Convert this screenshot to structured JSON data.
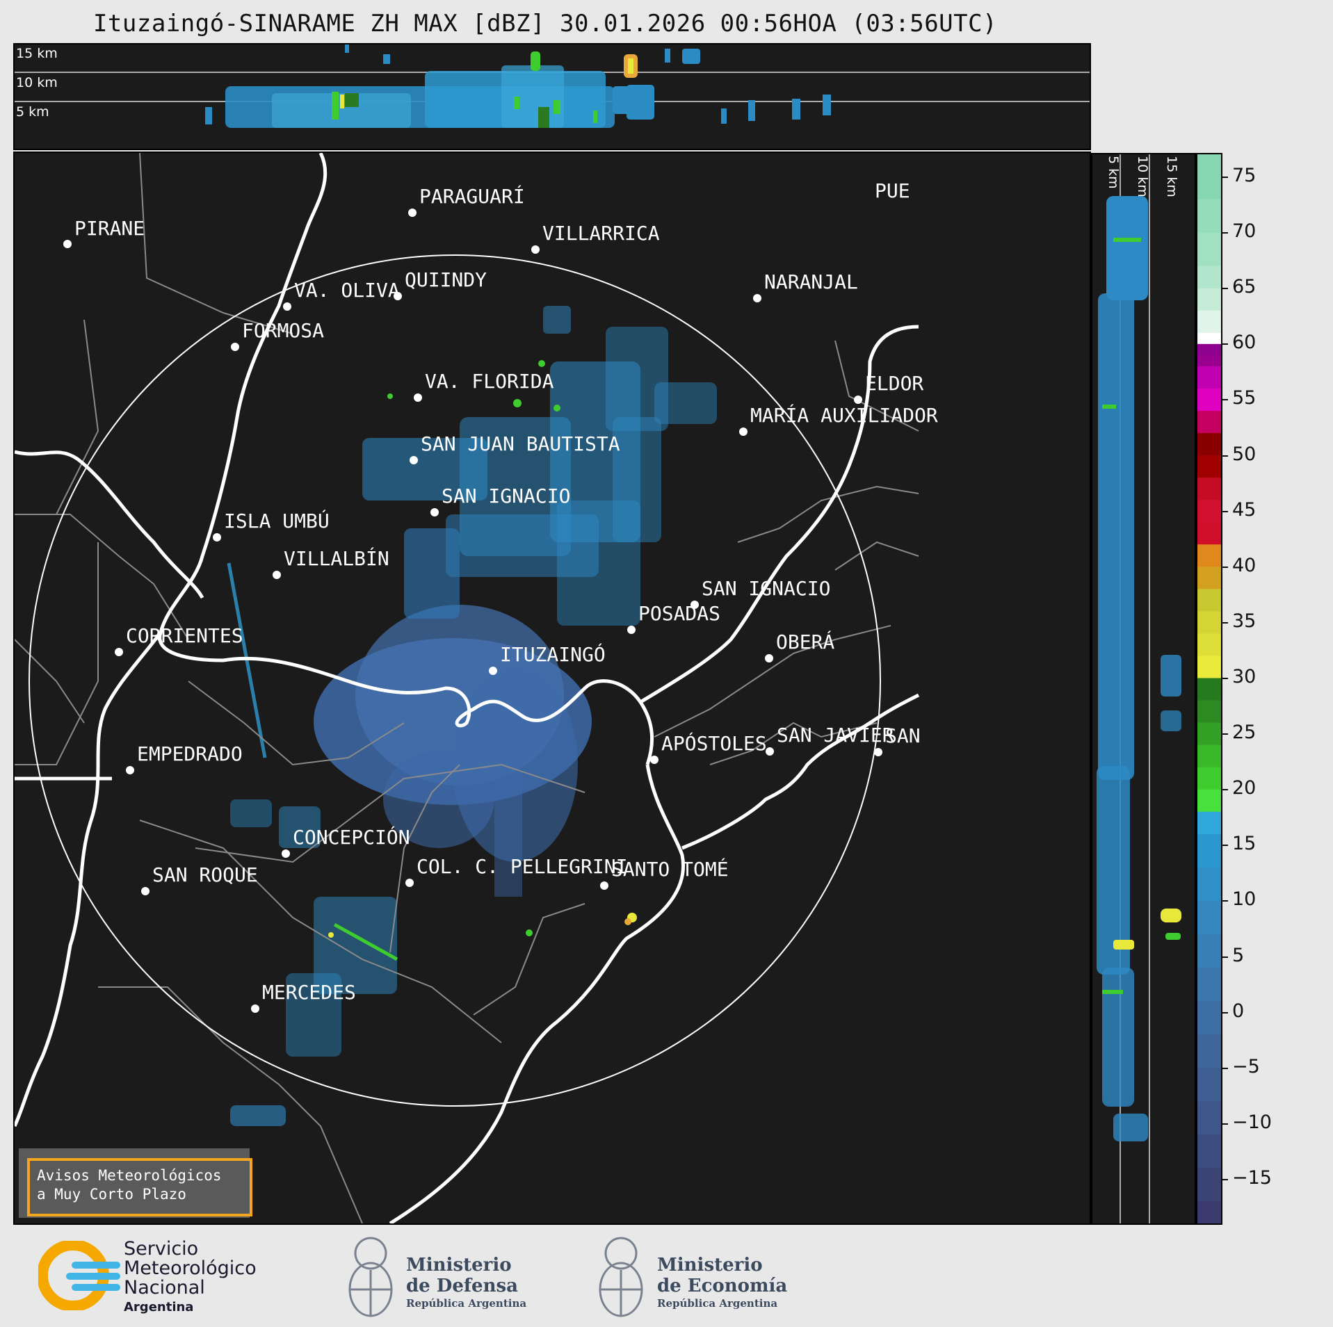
{
  "title": "Ituzaingó-SINARAME ZH MAX [dBZ] 30.01.2026 00:56HOA (03:56UTC)",
  "cross_section_top": {
    "labels": [
      "15 km",
      "10 km",
      "5 km"
    ]
  },
  "cross_section_right": {
    "labels": [
      "5 km",
      "10 km",
      "15 km"
    ]
  },
  "map": {
    "radar_site": "ITUZAINGÓ",
    "places": [
      {
        "name": "PIRANE"
      },
      {
        "name": "PARAGUARÍ"
      },
      {
        "name": "VILLARRICA"
      },
      {
        "name": "QUIINDY"
      },
      {
        "name": "VA. OLIVA"
      },
      {
        "name": "FORMOSA"
      },
      {
        "name": "NARANJAL"
      },
      {
        "name": "VA. FLORIDA"
      },
      {
        "name": "ELDOR"
      },
      {
        "name": "MARÍA AUXILIADOR"
      },
      {
        "name": "SAN JUAN BAUTISTA"
      },
      {
        "name": "SAN IGNACIO"
      },
      {
        "name": "ISLA UMBÚ"
      },
      {
        "name": "VILLALBÍN"
      },
      {
        "name": "SAN IGNACIO"
      },
      {
        "name": "POSADAS"
      },
      {
        "name": "CORRIENTES"
      },
      {
        "name": "OBERÁ"
      },
      {
        "name": "ITUZAINGÓ"
      },
      {
        "name": "EMPEDRADO"
      },
      {
        "name": "APÓSTOLES"
      },
      {
        "name": "SAN JAVIER"
      },
      {
        "name": "SAN"
      },
      {
        "name": "CONCEPCIÓN"
      },
      {
        "name": "COL. C. PELLEGRINI"
      },
      {
        "name": "SANTO TOMÉ"
      },
      {
        "name": "SAN ROQUE"
      },
      {
        "name": "MERCEDES"
      },
      {
        "name": "PUE"
      }
    ]
  },
  "colorbar": {
    "unit": "dBZ",
    "min": -19,
    "max": 77,
    "ticks": [
      "75",
      "70",
      "65",
      "60",
      "55",
      "50",
      "45",
      "40",
      "35",
      "30",
      "25",
      "20",
      "15",
      "10",
      "5",
      "0",
      "−5",
      "−10",
      "−15"
    ],
    "colors": {
      "precip_low": "#2e9ad0",
      "green": "#3fcc2f",
      "yellow": "#e8e83a",
      "orange": "#e58a1e",
      "red": "#d0102a",
      "magenta": "#e020e0",
      "white": "#ffffff",
      "mint": "#8ee0be"
    }
  },
  "alert": {
    "line1": "Avisos Meteorológicos",
    "line2": "a Muy Corto Plazo"
  },
  "footer": {
    "smn": {
      "line1": "Servicio",
      "line2": "Meteorológico",
      "line3": "Nacional",
      "line4": "Argentina"
    },
    "defensa": {
      "line1": "Ministerio",
      "line2": "de Defensa",
      "line3": "República Argentina"
    },
    "economia": {
      "line1": "Ministerio",
      "line2": "de Economía",
      "line3": "República Argentina"
    }
  }
}
